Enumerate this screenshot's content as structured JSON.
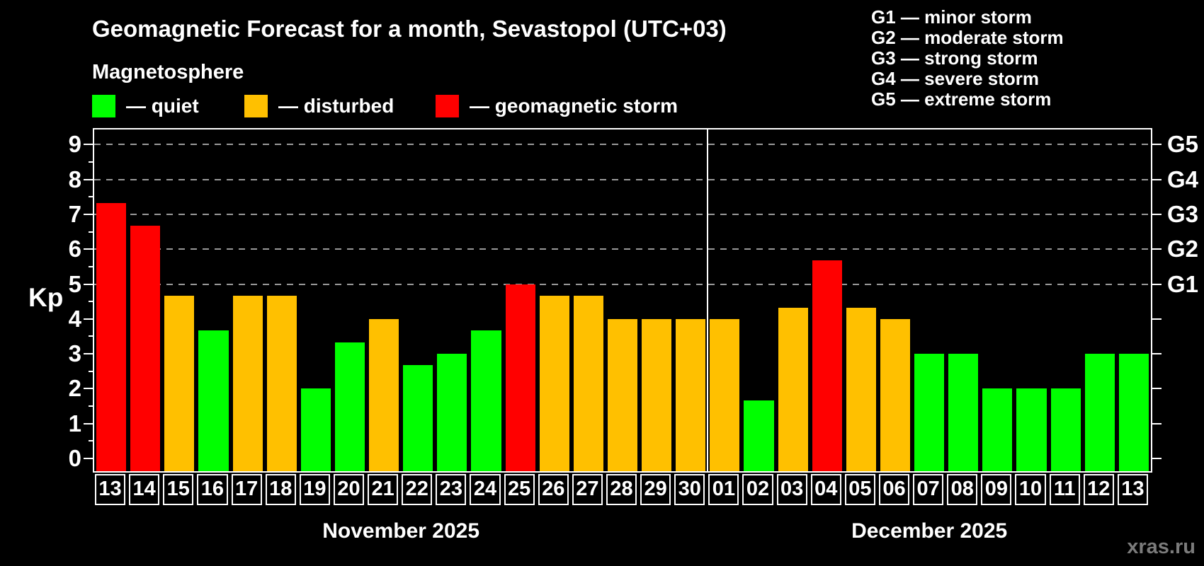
{
  "header": {
    "title": "Geomagnetic Forecast for a month, Sevastopol (UTC+03)",
    "subtitle": "Magnetosphere"
  },
  "legend": {
    "items": [
      {
        "id": "quiet",
        "label": "— quiet",
        "color": "#00ff00"
      },
      {
        "id": "disturbed",
        "label": "— disturbed",
        "color": "#ffc000"
      },
      {
        "id": "storm",
        "label": "— geomagnetic storm",
        "color": "#ff0000"
      }
    ]
  },
  "g_legend": {
    "lines": [
      "G1 — minor storm",
      "G2 — moderate storm",
      "G3 — strong storm",
      "G4 — severe storm",
      "G5 — extreme storm"
    ]
  },
  "watermark": "xras.ru",
  "chart_data": {
    "type": "bar",
    "title": "Geomagnetic Forecast for a month, Sevastopol (UTC+03)",
    "subtitle": "Magnetosphere",
    "ylabel": "Kp",
    "ylim": [
      0,
      9
    ],
    "yticks": [
      0,
      1,
      2,
      3,
      4,
      5,
      6,
      7,
      8,
      9
    ],
    "grid_kp": [
      5,
      6,
      7,
      8,
      9
    ],
    "grid_style": "dashed",
    "right_axis": [
      {
        "kp": 5,
        "label": "G1"
      },
      {
        "kp": 6,
        "label": "G2"
      },
      {
        "kp": 7,
        "label": "G3"
      },
      {
        "kp": 8,
        "label": "G4"
      },
      {
        "kp": 9,
        "label": "G5"
      }
    ],
    "state_colors": {
      "quiet": "#00ff00",
      "disturbed": "#ffc000",
      "storm": "#ff0000"
    },
    "months": [
      {
        "label": "November 2025",
        "days": [
          [
            "13",
            7.33,
            "storm"
          ],
          [
            "14",
            6.67,
            "storm"
          ],
          [
            "15",
            4.67,
            "disturbed"
          ],
          [
            "16",
            3.67,
            "quiet"
          ],
          [
            "17",
            4.67,
            "disturbed"
          ],
          [
            "18",
            4.67,
            "disturbed"
          ],
          [
            "19",
            2.0,
            "quiet"
          ],
          [
            "20",
            3.33,
            "quiet"
          ],
          [
            "21",
            4.0,
            "disturbed"
          ],
          [
            "22",
            2.67,
            "quiet"
          ],
          [
            "23",
            3.0,
            "quiet"
          ],
          [
            "24",
            3.67,
            "quiet"
          ],
          [
            "25",
            5.0,
            "storm"
          ],
          [
            "26",
            4.67,
            "disturbed"
          ],
          [
            "27",
            4.67,
            "disturbed"
          ],
          [
            "28",
            4.0,
            "disturbed"
          ],
          [
            "29",
            4.0,
            "disturbed"
          ],
          [
            "30",
            4.0,
            "disturbed"
          ]
        ]
      },
      {
        "label": "December 2025",
        "days": [
          [
            "01",
            4.0,
            "disturbed"
          ],
          [
            "02",
            1.67,
            "quiet"
          ],
          [
            "03",
            4.33,
            "disturbed"
          ],
          [
            "04",
            5.67,
            "storm"
          ],
          [
            "05",
            4.33,
            "disturbed"
          ],
          [
            "06",
            4.0,
            "disturbed"
          ],
          [
            "07",
            3.0,
            "quiet"
          ],
          [
            "08",
            3.0,
            "quiet"
          ],
          [
            "09",
            2.0,
            "quiet"
          ],
          [
            "10",
            2.0,
            "quiet"
          ],
          [
            "11",
            2.0,
            "quiet"
          ],
          [
            "12",
            3.0,
            "quiet"
          ],
          [
            "13",
            3.0,
            "quiet"
          ]
        ]
      }
    ]
  }
}
